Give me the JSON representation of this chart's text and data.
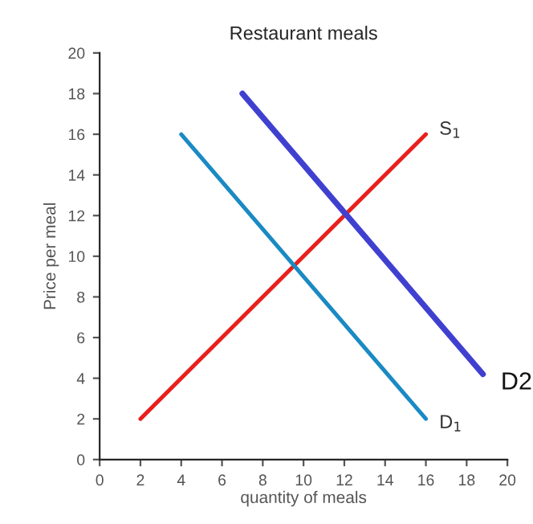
{
  "chart_data": {
    "type": "line",
    "title": "Restaurant meals",
    "xlabel": "quantity of meals",
    "ylabel": "Price per meal",
    "series": [
      {
        "name": "S$_{1}$",
        "color": "#e8201c",
        "x": [
          2,
          16
        ],
        "values": [
          2,
          16
        ]
      },
      {
        "name": "D$_{1}$",
        "color": "#1a8ac4",
        "x": [
          4,
          16
        ],
        "values": [
          16,
          2
        ]
      },
      {
        "name": "D2",
        "color": "#4040d0",
        "x": [
          7,
          18.8
        ],
        "values": [
          18,
          4.2
        ]
      }
    ],
    "xlim": [
      0,
      20
    ],
    "ylim": [
      0,
      20
    ],
    "xticks": [
      0,
      2,
      4,
      6,
      8,
      10,
      12,
      14,
      16,
      18,
      20
    ],
    "yticks": [
      0,
      2,
      4,
      6,
      8,
      10,
      12,
      14,
      16,
      18,
      20
    ],
    "grid": false,
    "legend": false
  }
}
